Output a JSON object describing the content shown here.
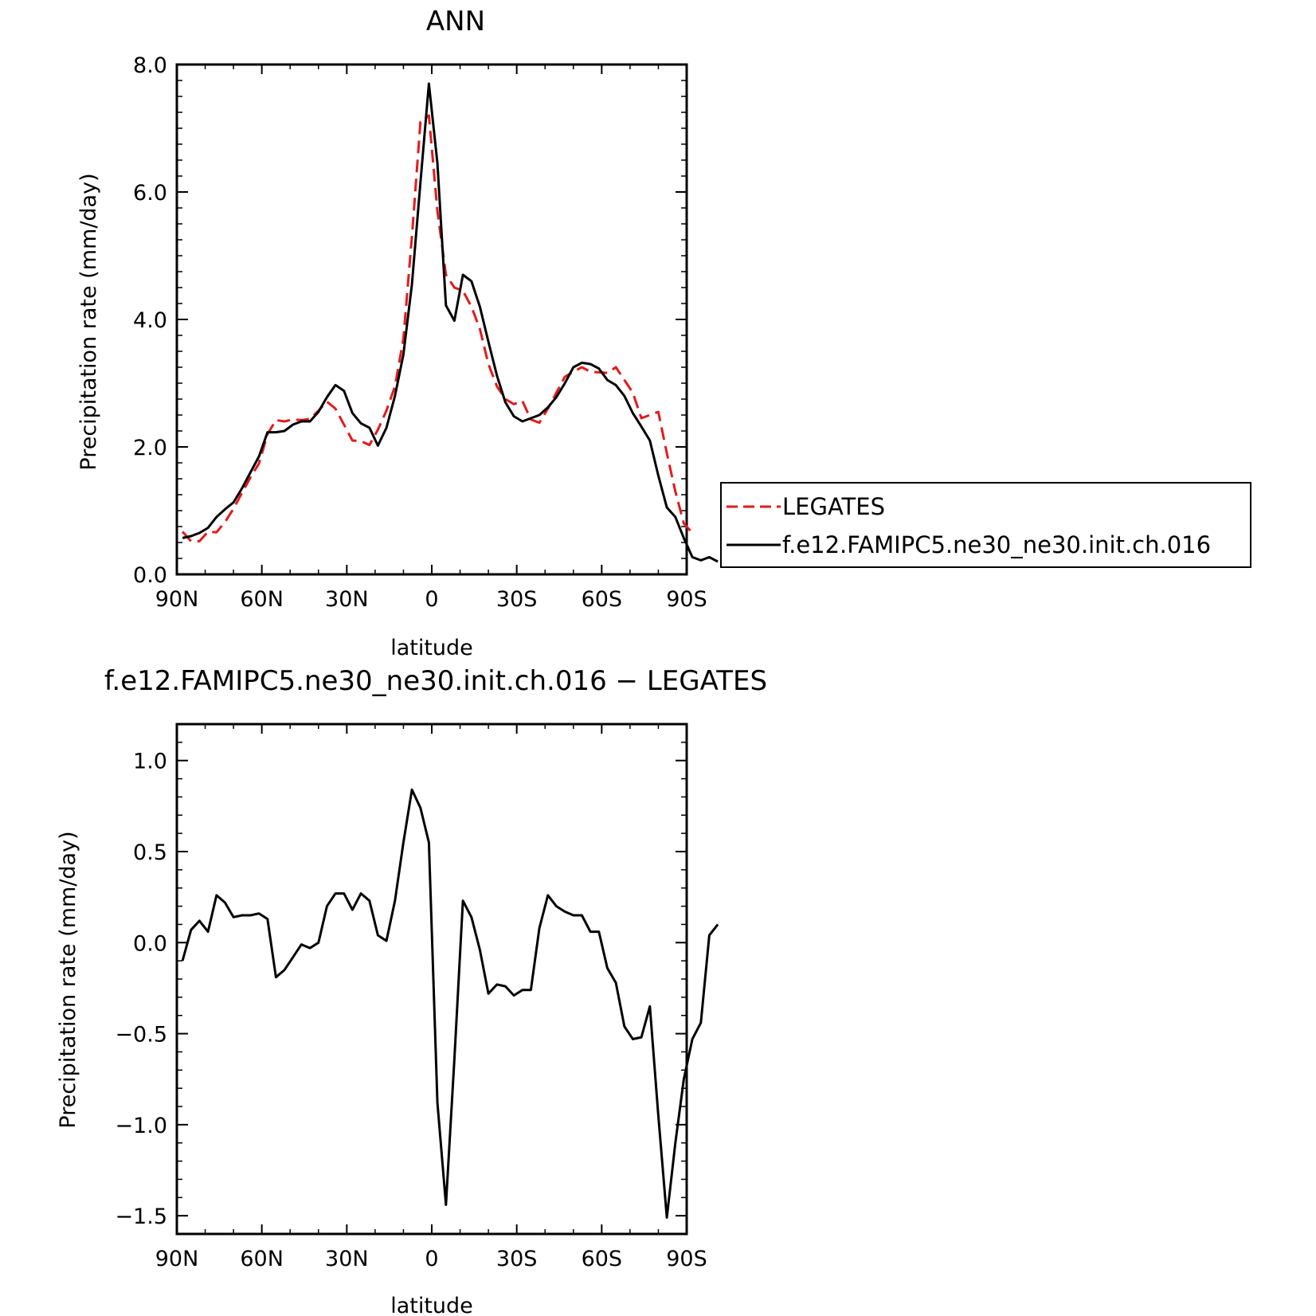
{
  "chart_data": [
    {
      "type": "line",
      "title": "ANN",
      "xlabel": "latitude",
      "ylabel": "Precipitation rate (mm/day)",
      "xlim": [
        -90,
        90
      ],
      "ylim": [
        0,
        8
      ],
      "xticks": [
        {
          "value": -90,
          "label": "90N"
        },
        {
          "value": -60,
          "label": "60N"
        },
        {
          "value": -30,
          "label": "30N"
        },
        {
          "value": 0,
          "label": "0"
        },
        {
          "value": 30,
          "label": "30S"
        },
        {
          "value": 60,
          "label": "60S"
        },
        {
          "value": 90,
          "label": "90S"
        }
      ],
      "yticks": [
        {
          "value": 0,
          "label": "0.0"
        },
        {
          "value": 2,
          "label": "2.0"
        },
        {
          "value": 4,
          "label": "4.0"
        },
        {
          "value": 6,
          "label": "6.0"
        },
        {
          "value": 8,
          "label": "8.0"
        }
      ],
      "legend": {
        "placement": "right, outside plot"
      },
      "series": [
        {
          "name": "LEGATES",
          "color": "#e41a1c",
          "dash": "dashed",
          "points": [
            [
              -88,
              0.67
            ],
            [
              -85,
              0.52
            ],
            [
              -82,
              0.52
            ],
            [
              -79,
              0.67
            ],
            [
              -76,
              0.66
            ],
            [
              -73,
              0.82
            ],
            [
              -70,
              1.03
            ],
            [
              -67,
              1.28
            ],
            [
              -64,
              1.52
            ],
            [
              -61,
              1.74
            ],
            [
              -58,
              2.2
            ],
            [
              -55,
              2.42
            ],
            [
              -52,
              2.4
            ],
            [
              -49,
              2.43
            ],
            [
              -46,
              2.42
            ],
            [
              -43,
              2.44
            ],
            [
              -40,
              2.57
            ],
            [
              -37,
              2.71
            ],
            [
              -34,
              2.6
            ],
            [
              -31,
              2.35
            ],
            [
              -28,
              2.1
            ],
            [
              -25,
              2.09
            ],
            [
              -22,
              2.03
            ],
            [
              -19,
              2.27
            ],
            [
              -16,
              2.57
            ],
            [
              -13,
              2.95
            ],
            [
              -10,
              3.7
            ],
            [
              -7,
              5.3
            ],
            [
              -4,
              7.1
            ],
            [
              -1,
              7.2
            ],
            [
              2,
              5.7
            ],
            [
              5,
              4.7
            ],
            [
              8,
              4.5
            ],
            [
              11,
              4.45
            ],
            [
              14,
              4.2
            ],
            [
              17,
              3.85
            ],
            [
              20,
              3.3
            ],
            [
              23,
              2.95
            ],
            [
              26,
              2.75
            ],
            [
              29,
              2.67
            ],
            [
              32,
              2.72
            ],
            [
              35,
              2.43
            ],
            [
              38,
              2.38
            ],
            [
              41,
              2.6
            ],
            [
              44,
              2.85
            ],
            [
              47,
              3.1
            ],
            [
              50,
              3.18
            ],
            [
              53,
              3.25
            ],
            [
              56,
              3.18
            ],
            [
              59,
              3.17
            ],
            [
              62,
              3.16
            ],
            [
              65,
              3.25
            ],
            [
              68,
              3.05
            ],
            [
              71,
              2.85
            ],
            [
              74,
              2.45
            ],
            [
              77,
              2.5
            ],
            [
              80,
              2.55
            ],
            [
              83,
              1.9
            ],
            [
              86,
              1.3
            ],
            [
              89,
              0.8
            ],
            [
              92,
              0.65
            ]
          ]
        },
        {
          "name": "f.e12.FAMIPC5.ne30_ne30.init.ch.016",
          "color": "#000000",
          "dash": "solid",
          "points": [
            [
              -88,
              0.57
            ],
            [
              -85,
              0.6
            ],
            [
              -82,
              0.65
            ],
            [
              -79,
              0.73
            ],
            [
              -76,
              0.9
            ],
            [
              -73,
              1.02
            ],
            [
              -70,
              1.13
            ],
            [
              -67,
              1.35
            ],
            [
              -64,
              1.6
            ],
            [
              -61,
              1.85
            ],
            [
              -58,
              2.23
            ],
            [
              -55,
              2.23
            ],
            [
              -52,
              2.25
            ],
            [
              -49,
              2.35
            ],
            [
              -46,
              2.4
            ],
            [
              -43,
              2.4
            ],
            [
              -40,
              2.55
            ],
            [
              -37,
              2.78
            ],
            [
              -34,
              2.97
            ],
            [
              -31,
              2.88
            ],
            [
              -28,
              2.53
            ],
            [
              -25,
              2.37
            ],
            [
              -22,
              2.3
            ],
            [
              -19,
              2.02
            ],
            [
              -16,
              2.3
            ],
            [
              -13,
              2.8
            ],
            [
              -10,
              3.45
            ],
            [
              -7,
              4.55
            ],
            [
              -4,
              6.15
            ],
            [
              -1,
              7.7
            ],
            [
              2,
              6.45
            ],
            [
              5,
              4.22
            ],
            [
              8,
              3.98
            ],
            [
              11,
              4.7
            ],
            [
              14,
              4.6
            ],
            [
              17,
              4.2
            ],
            [
              20,
              3.65
            ],
            [
              23,
              3.12
            ],
            [
              26,
              2.7
            ],
            [
              29,
              2.48
            ],
            [
              32,
              2.4
            ],
            [
              35,
              2.45
            ],
            [
              38,
              2.5
            ],
            [
              41,
              2.62
            ],
            [
              44,
              2.78
            ],
            [
              47,
              3.0
            ],
            [
              50,
              3.25
            ],
            [
              53,
              3.32
            ],
            [
              56,
              3.3
            ],
            [
              59,
              3.23
            ],
            [
              62,
              3.05
            ],
            [
              65,
              2.97
            ],
            [
              68,
              2.8
            ],
            [
              71,
              2.53
            ],
            [
              74,
              2.32
            ],
            [
              77,
              2.1
            ],
            [
              80,
              1.55
            ],
            [
              83,
              1.05
            ],
            [
              86,
              0.9
            ],
            [
              89,
              0.57
            ],
            [
              92,
              0.27
            ],
            [
              95,
              0.22
            ],
            [
              98,
              0.27
            ],
            [
              101,
              0.2
            ]
          ]
        }
      ]
    },
    {
      "type": "line",
      "title": "f.e12.FAMIPC5.ne30_ne30.init.ch.016 − LEGATES",
      "xlabel": "latitude",
      "ylabel": "Precipitation rate (mm/day)",
      "xlim": [
        -90,
        90
      ],
      "ylim": [
        -1.6,
        1.2
      ],
      "xticks": [
        {
          "value": -90,
          "label": "90N"
        },
        {
          "value": -60,
          "label": "60N"
        },
        {
          "value": -30,
          "label": "30N"
        },
        {
          "value": 0,
          "label": "0"
        },
        {
          "value": 30,
          "label": "30S"
        },
        {
          "value": 60,
          "label": "60S"
        },
        {
          "value": 90,
          "label": "90S"
        }
      ],
      "yticks": [
        {
          "value": -1.5,
          "label": "−1.5"
        },
        {
          "value": -1.0,
          "label": "−1.0"
        },
        {
          "value": -0.5,
          "label": "−0.5"
        },
        {
          "value": 0.0,
          "label": "0.0"
        },
        {
          "value": 0.5,
          "label": "0.5"
        },
        {
          "value": 1.0,
          "label": "1.0"
        }
      ],
      "series": [
        {
          "color": "#000000",
          "dash": "solid",
          "points": [
            [
              -88,
              -0.1
            ],
            [
              -85,
              0.07
            ],
            [
              -82,
              0.12
            ],
            [
              -79,
              0.06
            ],
            [
              -76,
              0.26
            ],
            [
              -73,
              0.22
            ],
            [
              -70,
              0.14
            ],
            [
              -67,
              0.15
            ],
            [
              -64,
              0.15
            ],
            [
              -61,
              0.16
            ],
            [
              -58,
              0.13
            ],
            [
              -55,
              -0.19
            ],
            [
              -52,
              -0.15
            ],
            [
              -49,
              -0.08
            ],
            [
              -46,
              -0.01
            ],
            [
              -43,
              -0.03
            ],
            [
              -40,
              0.0
            ],
            [
              -37,
              0.2
            ],
            [
              -34,
              0.27
            ],
            [
              -31,
              0.27
            ],
            [
              -28,
              0.18
            ],
            [
              -25,
              0.27
            ],
            [
              -22,
              0.23
            ],
            [
              -19,
              0.04
            ],
            [
              -16,
              0.01
            ],
            [
              -13,
              0.23
            ],
            [
              -10,
              0.55
            ],
            [
              -7,
              0.84
            ],
            [
              -4,
              0.74
            ],
            [
              -1,
              0.55
            ],
            [
              2,
              -0.88
            ],
            [
              5,
              -1.44
            ],
            [
              8,
              -0.64
            ],
            [
              11,
              0.23
            ],
            [
              14,
              0.14
            ],
            [
              17,
              -0.04
            ],
            [
              20,
              -0.28
            ],
            [
              23,
              -0.23
            ],
            [
              26,
              -0.24
            ],
            [
              29,
              -0.29
            ],
            [
              32,
              -0.26
            ],
            [
              35,
              -0.26
            ],
            [
              38,
              0.08
            ],
            [
              41,
              0.26
            ],
            [
              44,
              0.2
            ],
            [
              47,
              0.17
            ],
            [
              50,
              0.15
            ],
            [
              53,
              0.15
            ],
            [
              56,
              0.06
            ],
            [
              59,
              0.06
            ],
            [
              62,
              -0.14
            ],
            [
              65,
              -0.22
            ],
            [
              68,
              -0.46
            ],
            [
              71,
              -0.53
            ],
            [
              74,
              -0.52
            ],
            [
              77,
              -0.35
            ],
            [
              80,
              -0.95
            ],
            [
              83,
              -1.51
            ],
            [
              86,
              -1.1
            ],
            [
              89,
              -0.75
            ],
            [
              92,
              -0.53
            ],
            [
              95,
              -0.44
            ],
            [
              98,
              0.04
            ],
            [
              101,
              0.1
            ]
          ]
        }
      ]
    }
  ]
}
